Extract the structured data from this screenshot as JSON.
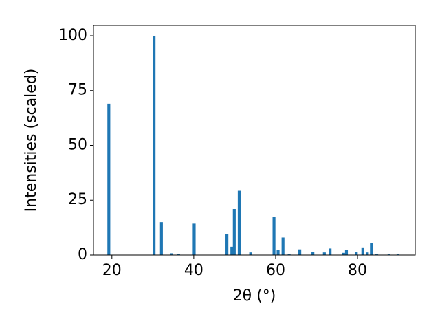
{
  "chart_data": {
    "type": "bar",
    "xlabel": "2θ (°)",
    "ylabel": "Intensities (scaled)",
    "x": [
      19.25,
      30.3,
      32.1,
      34.6,
      36.3,
      40.1,
      48.1,
      49.3,
      49.9,
      51.1,
      53.9,
      59.6,
      60.6,
      61.8,
      63.3,
      65.9,
      69.1,
      71.9,
      73.3,
      76.6,
      77.3,
      79.7,
      81.3,
      82.4,
      83.4,
      84.7,
      87.7,
      89.9
    ],
    "values": [
      69,
      100,
      15,
      0.8,
      0.4,
      14.3,
      9.5,
      3.8,
      21,
      29.3,
      1.2,
      17.5,
      2.2,
      8,
      0.3,
      2.6,
      1.4,
      1.2,
      3,
      1,
      2.5,
      1.4,
      3.5,
      1.2,
      5.5,
      0.3,
      0.3,
      0.3
    ],
    "color": "#1f77b4",
    "bar_width": 0.7,
    "xlim": [
      15.5,
      94.1
    ],
    "xticks": [
      20,
      40,
      60,
      80
    ],
    "ylim": [
      0,
      104.7
    ],
    "yticks": [
      0,
      25,
      50,
      75,
      100
    ]
  }
}
